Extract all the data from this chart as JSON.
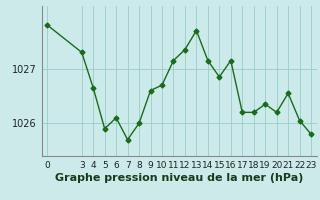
{
  "x": [
    0,
    3,
    4,
    5,
    6,
    7,
    8,
    9,
    10,
    11,
    12,
    13,
    14,
    15,
    16,
    17,
    18,
    19,
    20,
    21,
    22,
    23
  ],
  "y": [
    1027.8,
    1027.3,
    1026.65,
    1025.9,
    1026.1,
    1025.7,
    1026.0,
    1026.6,
    1026.7,
    1027.15,
    1027.35,
    1027.7,
    1027.15,
    1026.85,
    1027.15,
    1026.2,
    1026.2,
    1026.35,
    1026.2,
    1026.55,
    1026.05,
    1025.8
  ],
  "line_color": "#1a6b1a",
  "marker": "D",
  "marker_size": 2.5,
  "background_color": "#cceaea",
  "grid_color": "#99cccc",
  "xlabel": "Graphe pression niveau de la mer (hPa)",
  "xlabel_fontsize": 8,
  "yticks": [
    1026,
    1027
  ],
  "ylim": [
    1025.4,
    1028.15
  ],
  "xlim": [
    -0.5,
    23.5
  ],
  "xticks": [
    0,
    3,
    4,
    5,
    6,
    7,
    8,
    9,
    10,
    11,
    12,
    13,
    14,
    15,
    16,
    17,
    18,
    19,
    20,
    21,
    22,
    23
  ],
  "tick_fontsize": 6.5,
  "linewidth": 1.0,
  "figsize": [
    3.2,
    2.0
  ],
  "dpi": 100
}
